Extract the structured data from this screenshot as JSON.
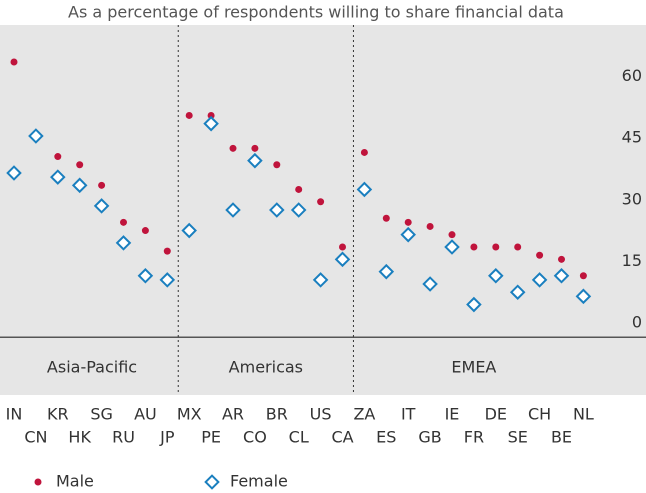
{
  "chart_data": {
    "type": "dot",
    "title": "As a percentage of respondents willing to share financial data",
    "categories": [
      "IN",
      "CN",
      "KR",
      "HK",
      "SG",
      "RU",
      "AU",
      "JP",
      "MX",
      "PE",
      "AR",
      "CO",
      "BR",
      "CL",
      "US",
      "CA",
      "ZA",
      "ES",
      "IT",
      "GB",
      "IE",
      "FR",
      "DE",
      "SE",
      "CH",
      "BE",
      "NL"
    ],
    "groups": [
      "Asia-Pacific",
      "Americas",
      "EMEA"
    ],
    "series": [
      {
        "name": "Male",
        "color": "#c0143c",
        "values": [
          65,
          47,
          42,
          40,
          35,
          26,
          24,
          19,
          52,
          52,
          44,
          44,
          40,
          34,
          31,
          20,
          43,
          27,
          26,
          25,
          23,
          20,
          20,
          20,
          18,
          17,
          13
        ]
      },
      {
        "name": "Female",
        "color": "#1a7fbf",
        "values": [
          38,
          47,
          37,
          35,
          30,
          21,
          13,
          12,
          24,
          50,
          29,
          41,
          29,
          29,
          12,
          17,
          34,
          14,
          23,
          11,
          20,
          6,
          13,
          9,
          12,
          13,
          8
        ]
      }
    ],
    "ylim": [
      -16,
      74
    ],
    "yticks": [
      0,
      15,
      30,
      45,
      60
    ]
  }
}
